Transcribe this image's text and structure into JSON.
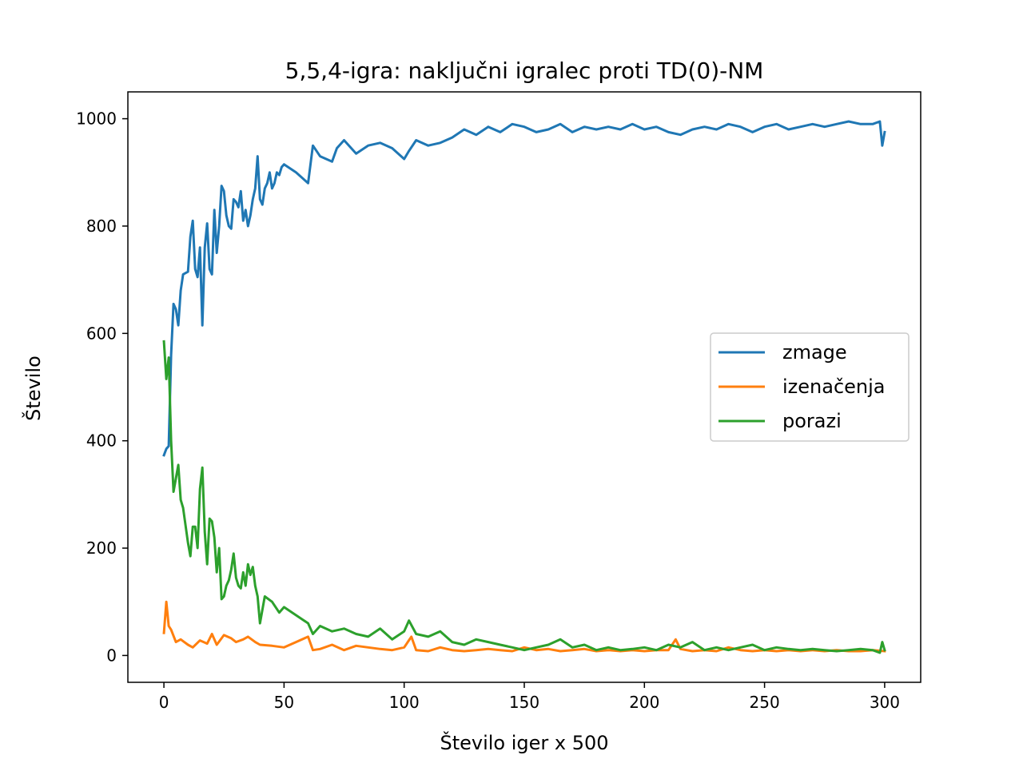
{
  "chart_data": {
    "type": "line",
    "title": "5,5,4-igra: naključni igralec proti TD(0)-NM",
    "xlabel": "Število iger x 500",
    "ylabel": "Število",
    "xlim": [
      -15,
      315
    ],
    "ylim": [
      -50,
      1050
    ],
    "xticks": [
      0,
      50,
      100,
      150,
      200,
      250,
      300
    ],
    "yticks": [
      0,
      200,
      400,
      600,
      800,
      1000
    ],
    "grid": false,
    "legend_position": "center-right",
    "series": [
      {
        "name": "zmage",
        "color": "#1f77b4",
        "x": [
          0,
          1,
          2,
          3,
          4,
          5,
          6,
          7,
          8,
          10,
          11,
          12,
          13,
          14,
          15,
          16,
          17,
          18,
          19,
          20,
          21,
          22,
          23,
          24,
          25,
          26,
          27,
          28,
          29,
          30,
          31,
          32,
          33,
          34,
          35,
          36,
          37,
          38,
          39,
          40,
          41,
          42,
          43,
          44,
          45,
          46,
          47,
          48,
          49,
          50,
          55,
          60,
          62,
          65,
          70,
          72,
          75,
          80,
          85,
          90,
          95,
          100,
          102,
          105,
          110,
          115,
          120,
          125,
          130,
          135,
          140,
          145,
          150,
          155,
          160,
          165,
          170,
          175,
          180,
          185,
          190,
          195,
          200,
          205,
          210,
          215,
          220,
          225,
          230,
          235,
          240,
          245,
          250,
          255,
          260,
          265,
          270,
          275,
          280,
          285,
          290,
          295,
          298,
          299,
          300
        ],
        "y": [
          373,
          385,
          390,
          560,
          655,
          645,
          615,
          680,
          710,
          715,
          780,
          810,
          720,
          705,
          760,
          615,
          760,
          805,
          720,
          710,
          830,
          750,
          800,
          875,
          865,
          820,
          800,
          795,
          850,
          845,
          835,
          865,
          810,
          830,
          800,
          820,
          850,
          870,
          930,
          850,
          840,
          870,
          880,
          900,
          870,
          880,
          900,
          895,
          910,
          915,
          900,
          880,
          950,
          930,
          920,
          945,
          960,
          935,
          950,
          955,
          945,
          925,
          940,
          960,
          950,
          955,
          965,
          980,
          970,
          985,
          975,
          990,
          985,
          975,
          980,
          990,
          975,
          985,
          980,
          985,
          980,
          990,
          980,
          985,
          975,
          970,
          980,
          985,
          980,
          990,
          985,
          975,
          985,
          990,
          980,
          985,
          990,
          985,
          990,
          995,
          990,
          990,
          995,
          950,
          975
        ]
      },
      {
        "name": "izenačenja",
        "color": "#ff7f0e",
        "x": [
          0,
          1,
          2,
          3,
          5,
          7,
          10,
          12,
          15,
          18,
          20,
          22,
          25,
          28,
          30,
          33,
          35,
          38,
          40,
          45,
          50,
          55,
          60,
          62,
          65,
          70,
          75,
          80,
          85,
          90,
          95,
          100,
          103,
          105,
          110,
          115,
          120,
          125,
          130,
          135,
          140,
          145,
          150,
          155,
          160,
          165,
          170,
          175,
          180,
          185,
          190,
          195,
          200,
          205,
          210,
          213,
          215,
          220,
          225,
          230,
          235,
          240,
          245,
          250,
          255,
          260,
          265,
          270,
          275,
          280,
          285,
          290,
          295,
          300
        ],
        "y": [
          42,
          100,
          55,
          48,
          25,
          30,
          20,
          15,
          28,
          22,
          40,
          20,
          38,
          32,
          25,
          30,
          35,
          25,
          20,
          18,
          15,
          25,
          35,
          10,
          12,
          20,
          10,
          18,
          15,
          12,
          10,
          15,
          35,
          10,
          8,
          15,
          10,
          8,
          10,
          12,
          10,
          8,
          15,
          10,
          12,
          8,
          10,
          12,
          8,
          10,
          8,
          10,
          8,
          10,
          10,
          30,
          12,
          8,
          10,
          8,
          15,
          10,
          8,
          10,
          8,
          10,
          8,
          10,
          8,
          10,
          8,
          8,
          10,
          8
        ]
      },
      {
        "name": "porazi",
        "color": "#2ca02c",
        "x": [
          0,
          1,
          2,
          3,
          4,
          5,
          6,
          7,
          8,
          10,
          11,
          12,
          13,
          14,
          15,
          16,
          17,
          18,
          19,
          20,
          21,
          22,
          23,
          24,
          25,
          26,
          27,
          28,
          29,
          30,
          31,
          32,
          33,
          34,
          35,
          36,
          37,
          38,
          39,
          40,
          42,
          45,
          48,
          50,
          55,
          60,
          62,
          65,
          70,
          75,
          80,
          85,
          90,
          95,
          100,
          102,
          105,
          110,
          115,
          120,
          125,
          130,
          135,
          140,
          145,
          150,
          155,
          160,
          165,
          170,
          175,
          180,
          185,
          190,
          195,
          200,
          205,
          210,
          215,
          220,
          225,
          230,
          235,
          240,
          245,
          250,
          255,
          260,
          265,
          270,
          275,
          280,
          285,
          290,
          295,
          298,
          299,
          300
        ],
        "y": [
          585,
          515,
          555,
          400,
          305,
          330,
          355,
          290,
          275,
          210,
          185,
          240,
          240,
          200,
          310,
          350,
          230,
          170,
          255,
          250,
          220,
          155,
          200,
          105,
          110,
          130,
          140,
          160,
          190,
          145,
          130,
          125,
          155,
          130,
          170,
          150,
          165,
          130,
          110,
          60,
          110,
          100,
          80,
          90,
          75,
          60,
          40,
          55,
          45,
          50,
          40,
          35,
          50,
          30,
          45,
          65,
          40,
          35,
          45,
          25,
          20,
          30,
          25,
          20,
          15,
          10,
          15,
          20,
          30,
          15,
          20,
          10,
          15,
          10,
          12,
          15,
          10,
          20,
          15,
          25,
          10,
          15,
          10,
          15,
          20,
          10,
          15,
          12,
          10,
          12,
          10,
          8,
          10,
          12,
          10,
          5,
          25,
          10
        ]
      }
    ]
  }
}
